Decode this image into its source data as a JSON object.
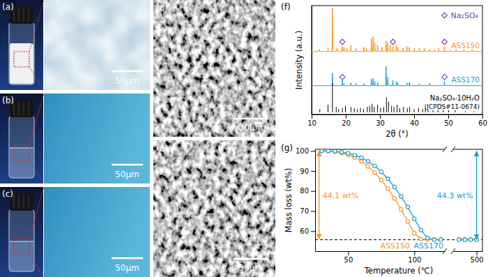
{
  "panels": [
    {
      "label": "(a)",
      "scale_bar": "50μm"
    },
    {
      "label": "(b)",
      "scale_bar": "50μm"
    },
    {
      "label": "(c)",
      "scale_bar": "50μm"
    },
    {
      "label": "(d)",
      "scale_bar": "30μm"
    },
    {
      "label": "(e)",
      "scale_bar": "30μm"
    }
  ],
  "chart_data": [
    {
      "panel": "(f)",
      "type": "line",
      "xlabel": "2θ (°)",
      "ylabel": "Intensity (a.u.)",
      "xlim": [
        10,
        60
      ],
      "xticks": [
        10,
        20,
        30,
        40,
        50,
        60
      ],
      "ylim": [
        -2,
        100
      ],
      "tick_labels": "x",
      "legend": "upper right",
      "series": [
        {
          "name": "ASS150",
          "color": "#f7941d",
          "x": [
            10,
            12.08,
            12.2,
            12.32,
            14.68,
            14.8,
            14.92,
            15.98,
            16.1,
            16.22,
            17.28,
            17.4,
            17.52,
            18.88,
            19.0,
            19.12,
            19.38,
            19.5,
            19.62,
            20.18,
            20.3,
            20.42,
            21.38,
            21.5,
            21.62,
            22.88,
            23.0,
            23.12,
            25.18,
            25.3,
            25.42,
            25.88,
            26.0,
            26.12,
            27.38,
            27.5,
            27.62,
            27.88,
            28.0,
            28.12,
            28.38,
            28.5,
            28.62,
            29.18,
            29.3,
            29.42,
            30.48,
            30.6,
            30.72,
            31.68,
            31.8,
            31.92,
            32.18,
            32.3,
            32.42,
            32.88,
            33.0,
            33.12,
            33.68,
            33.8,
            33.92,
            34.68,
            34.8,
            34.92,
            35.08,
            35.2,
            35.32,
            36.58,
            36.7,
            36.82,
            37.78,
            37.9,
            38.02,
            38.48,
            38.6,
            38.72,
            39.98,
            40.1,
            40.22,
            41.38,
            41.5,
            41.62,
            42.88,
            43.0,
            43.12,
            44.38,
            44.5,
            44.62,
            45.88,
            46.0,
            46.12,
            47.08,
            47.2,
            47.32,
            48.78,
            48.9,
            49.02,
            50.38,
            50.5,
            50.62,
            52.18,
            52.3,
            52.42,
            54.48,
            54.6,
            54.72,
            56.88,
            57.0,
            57.12,
            60
          ],
          "values": [
            57,
            57,
            59,
            57,
            57,
            60,
            57,
            57,
            98,
            57,
            57,
            60,
            57,
            57,
            62,
            57,
            57,
            61,
            57,
            57,
            60,
            57,
            57,
            63,
            57,
            57,
            60,
            57,
            57,
            61,
            57,
            57,
            60,
            57,
            57,
            69,
            57,
            57,
            71,
            57,
            57,
            65,
            57,
            57,
            63,
            57,
            57,
            61,
            57,
            57,
            67,
            57,
            57,
            65,
            57,
            57,
            63,
            57,
            57,
            62,
            57,
            57,
            64,
            57,
            57,
            61,
            57,
            57,
            60,
            57,
            57,
            62,
            57,
            57,
            61,
            57,
            57,
            60,
            57,
            57,
            60,
            57,
            57,
            60,
            57,
            57,
            59,
            57,
            57,
            59,
            57,
            57,
            60,
            57,
            57,
            62,
            57,
            57,
            59,
            57,
            57,
            59,
            57,
            57,
            59,
            57,
            57,
            59,
            57,
            57
          ]
        },
        {
          "name": "ASS170",
          "color": "#1e9bd7",
          "x": [
            10,
            15.98,
            16.1,
            16.22,
            18.88,
            19.0,
            19.12,
            19.38,
            19.5,
            19.62,
            21.38,
            21.5,
            21.62,
            22.88,
            23.0,
            23.12,
            25.18,
            25.3,
            25.42,
            27.38,
            27.5,
            27.62,
            27.88,
            28.0,
            28.12,
            28.38,
            28.5,
            28.62,
            29.18,
            29.3,
            29.42,
            31.68,
            31.8,
            31.92,
            32.18,
            32.3,
            32.42,
            33.68,
            33.8,
            33.92,
            34.68,
            34.8,
            34.92,
            35.08,
            35.2,
            35.32,
            37.78,
            37.9,
            38.02,
            38.48,
            38.6,
            38.72,
            41.38,
            41.5,
            41.62,
            44.38,
            44.5,
            44.62,
            48.78,
            48.9,
            49.02,
            50.38,
            50.5,
            50.62,
            54.48,
            54.6,
            54.72,
            60
          ],
          "values": [
            25,
            25,
            37,
            25,
            25,
            30,
            25,
            25,
            27,
            25,
            25,
            28,
            25,
            25,
            27,
            25,
            25,
            27,
            25,
            25,
            31,
            25,
            25,
            32,
            25,
            25,
            29,
            25,
            25,
            28,
            25,
            25,
            43,
            25,
            25,
            33,
            25,
            25,
            30,
            25,
            25,
            29,
            25,
            25,
            28,
            25,
            25,
            28,
            25,
            25,
            28,
            25,
            25,
            27,
            25,
            25,
            27,
            25,
            25,
            29,
            25,
            25,
            26,
            25,
            25,
            26,
            25,
            25
          ]
        },
        {
          "name": "Na₂SO₄·10H₂O",
          "type": "stick",
          "color": "#000000",
          "x": [
            12.4,
            14.8,
            16.1,
            17.2,
            17.9,
            19.0,
            19.9,
            21.5,
            22.5,
            23.4,
            24.3,
            25.2,
            26.3,
            27.0,
            27.7,
            28.3,
            29.3,
            30.2,
            31.1,
            31.9,
            32.5,
            33.4,
            34.1,
            35.0,
            35.8,
            36.9,
            38.0,
            38.7,
            40.0,
            41.3,
            42.5,
            43.3,
            44.1,
            45.5,
            47.0,
            48.5,
            50.1,
            52.0,
            55.0,
            57.5
          ],
          "values": [
            3,
            7,
            27,
            5,
            3,
            4,
            6,
            5,
            4,
            3,
            4,
            3,
            5,
            6,
            8,
            5,
            7,
            4,
            5,
            14,
            10,
            6,
            5,
            7,
            4,
            5,
            4,
            5,
            3,
            4,
            3,
            4,
            2,
            2,
            2,
            2,
            2,
            2,
            1,
            1
          ]
        },
        {
          "name": "Na₂SO₄",
          "type": "scatter",
          "marker": "diamond",
          "color": "#7b3f9e",
          "x": [
            19.0,
            33.8,
            48.9,
            19.0,
            48.9
          ],
          "values": [
            66,
            66,
            66,
            33,
            33
          ]
        }
      ],
      "annotations": [
        {
          "text": "(JCPDS#11-0674)",
          "x": 60,
          "y": 0,
          "color": "#000000"
        }
      ]
    },
    {
      "panel": "(g)",
      "type": "line",
      "xlabel": "Temperature (℃)",
      "ylabel": "Mass loss (wt%)",
      "x_segments": [
        {
          "xlim": [
            25,
            123
          ],
          "xticks": [
            50,
            100
          ]
        },
        {
          "xlim": [
            480,
            505
          ],
          "xticks": [
            500
          ]
        }
      ],
      "ylim": [
        50,
        100.8
      ],
      "yticks": [
        60,
        70,
        80,
        90,
        100
      ],
      "x": [
        30,
        35,
        40,
        45,
        50,
        55,
        60,
        65,
        70,
        75,
        80,
        85,
        90,
        95,
        100,
        105,
        110,
        115,
        120,
        485,
        490,
        495,
        500
      ],
      "series": [
        {
          "name": "ASS150",
          "color": "#f7941d",
          "marker": "circle",
          "values": [
            100,
            99.9,
            99.6,
            99.0,
            98.0,
            96.7,
            94.8,
            92.3,
            89.2,
            85.5,
            81.2,
            76.3,
            70.8,
            64.8,
            59.0,
            56.0,
            55.9,
            55.9,
            55.9,
            55.9,
            55.9,
            55.9,
            55.9
          ]
        },
        {
          "name": "ASS170",
          "color": "#1e9bd7",
          "marker": "circle",
          "values": [
            100,
            99.95,
            99.8,
            99.4,
            98.8,
            97.9,
            96.6,
            94.8,
            92.5,
            89.6,
            86.1,
            82.0,
            77.3,
            72.0,
            66.2,
            60.5,
            56.6,
            55.7,
            55.7,
            55.7,
            55.7,
            55.7,
            55.7
          ]
        }
      ],
      "hline": {
        "y": 55.7,
        "line_style": "dashed"
      },
      "annotations": [
        {
          "text": "44.1 wt%",
          "x": 28,
          "y_from": 100,
          "y_to": 55.9,
          "color": "#f7941d"
        },
        {
          "text": "44.3 wt%",
          "x": 500,
          "y_from": 100,
          "y_to": 55.7,
          "color": "#1e9bd7"
        }
      ]
    }
  ]
}
